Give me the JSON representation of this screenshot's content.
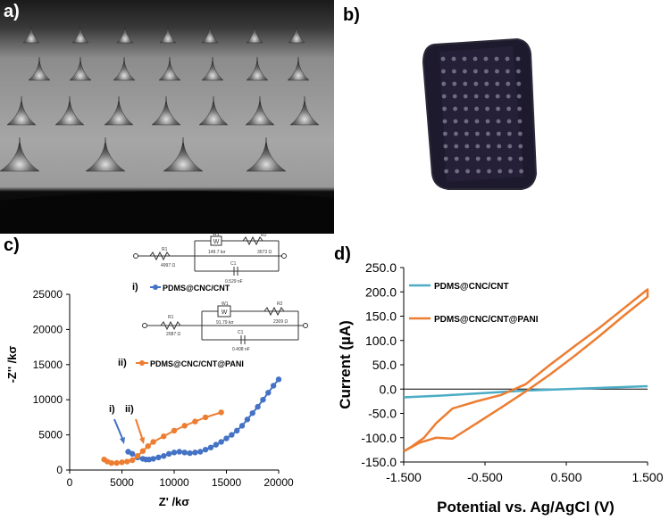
{
  "panels": {
    "a": "a)",
    "b": "b)",
    "c": "c)",
    "d": "d)"
  },
  "colors": {
    "blue_series": "#4472C4",
    "orange_series": "#ED7D31",
    "teal_series": "#4BACC6",
    "axis": "#000000",
    "photo_sample": "#1e1a2e"
  },
  "circuit_i": {
    "r1_name": "R1",
    "r1_value": "4997 Ω",
    "w_name": "W1",
    "w_value": "149.7 kσ",
    "r2_name": "R2",
    "r2_value": "3573 Ω",
    "c_name": "C1",
    "c_value": "0.529 nF"
  },
  "circuit_ii": {
    "r1_name": "R1",
    "r1_value": "2087 Ω",
    "w_name": "W1",
    "w_value": "91.79 kσ",
    "r2_name": "R2",
    "r2_value": "2309 Ω",
    "c_name": "C1",
    "c_value": "0.408 nF"
  },
  "chart_data": [
    {
      "type": "scatter",
      "panel": "c",
      "xlabel": "Z' /kσ",
      "ylabel": "-Z'' /kσ",
      "xlim": [
        0,
        20000
      ],
      "ylim": [
        0,
        25000
      ],
      "xticks": [
        "0",
        "5000",
        "10000",
        "15000",
        "20000"
      ],
      "yticks": [
        "0",
        "5000",
        "10000",
        "15000",
        "20000",
        "25000"
      ],
      "grid": false,
      "legend": [
        {
          "marker": "i)",
          "name": "PDMS@CNC/CNT"
        },
        {
          "marker": "ii)",
          "name": "PDMS@CNC/CNT@PANI"
        }
      ],
      "annotations": [
        "i)",
        "ii)"
      ],
      "series": [
        {
          "name": "PDMS@CNC/CNT",
          "x": [
            5600,
            6000,
            6500,
            7000,
            7300,
            7600,
            8000,
            8500,
            9000,
            9500,
            10000,
            10500,
            11000,
            11500,
            12000,
            12500,
            13000,
            13500,
            14000,
            14500,
            15000,
            15500,
            16000,
            16500,
            17000,
            17500,
            18000,
            18500,
            19000,
            19500,
            20000
          ],
          "y": [
            2600,
            2300,
            1800,
            1600,
            1500,
            1500,
            1600,
            1800,
            2000,
            2300,
            2500,
            2600,
            2500,
            2400,
            2500,
            2600,
            2900,
            3200,
            3600,
            4000,
            4500,
            5000,
            5600,
            6300,
            7200,
            8100,
            9000,
            10000,
            11000,
            12000,
            12900
          ]
        },
        {
          "name": "PDMS@CNC/CNT@PANI",
          "x": [
            3300,
            3600,
            4000,
            4500,
            5000,
            5500,
            6000,
            6500,
            7000,
            7500,
            8000,
            9000,
            10000,
            11000,
            12000,
            13000,
            14500
          ],
          "y": [
            1500,
            1200,
            1000,
            1000,
            1100,
            1200,
            1400,
            2000,
            2700,
            3400,
            4000,
            4800,
            5600,
            6300,
            6900,
            7500,
            8200
          ]
        }
      ]
    },
    {
      "type": "line",
      "panel": "d",
      "xlabel": "Potential vs. Ag/AgCl (V)",
      "ylabel": "Current (µA)",
      "xlim": [
        -1.5,
        1.5
      ],
      "ylim": [
        -150,
        250
      ],
      "xticks": [
        "-1.500",
        "-0.500",
        "0.500",
        "1.500"
      ],
      "yticks": [
        "-150.0",
        "-100.0",
        "-50.0",
        "0.0",
        "50.0",
        "100.0",
        "150.0",
        "200.0",
        "250.0"
      ],
      "grid": false,
      "legend": [
        {
          "name": "PDMS@CNC/CNT"
        },
        {
          "name": "PDMS@CNC/CNT@PANI"
        }
      ],
      "series": [
        {
          "name": "PDMS@CNC/CNT",
          "x": [
            -1.5,
            -1.0,
            -0.5,
            0.0,
            0.5,
            1.0,
            1.5
          ],
          "y": [
            -17,
            -13,
            -8,
            -3,
            0,
            3,
            6
          ]
        },
        {
          "name": "PDMS@CNC/CNT@PANI",
          "x": [
            -1.5,
            -1.3,
            -1.1,
            -0.9,
            -0.6,
            -0.3,
            0.0,
            0.3,
            0.6,
            0.9,
            1.2,
            1.5,
            1.5,
            1.2,
            0.9,
            0.6,
            0.3,
            0.0,
            -0.3,
            -0.6,
            -0.9,
            -1.1,
            -1.25,
            -1.4,
            -1.5
          ],
          "y": [
            -128,
            -110,
            -100,
            -102,
            -70,
            -38,
            -5,
            30,
            68,
            108,
            150,
            190,
            205,
            165,
            125,
            88,
            50,
            10,
            -12,
            -25,
            -40,
            -70,
            -100,
            -118,
            -128
          ]
        }
      ]
    }
  ]
}
